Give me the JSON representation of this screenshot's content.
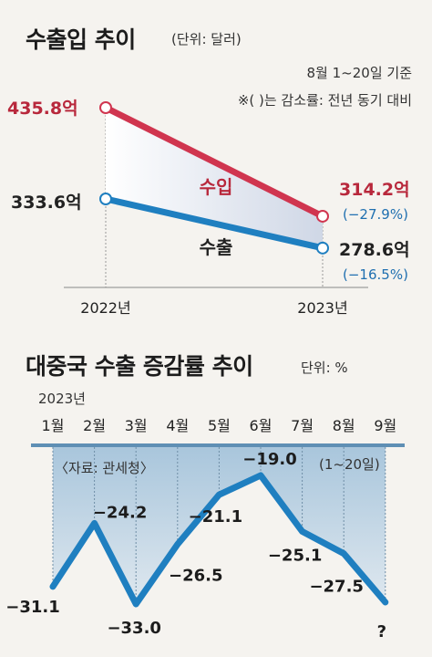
{
  "top": {
    "title": "수출입 추이",
    "unit": "(단위: 달러)",
    "note1": "8월 1~20일 기준",
    "note2": "※(  )는 감소률: 전년 동기 대비"
  },
  "bottom": {
    "title": "대중국 수출 증감률 추이",
    "unit": "단위: %",
    "year": "2023년",
    "source": "〈자료: 관세청〉",
    "period_note": "(1~20일)"
  },
  "colors": {
    "import": "#d0354f",
    "export": "#1f7fc0",
    "import_text": "#b8283c",
    "export_text": "#1f6fb0"
  },
  "chart_data": [
    {
      "type": "line",
      "categories": [
        "2022년",
        "2023년"
      ],
      "series": [
        {
          "name": "수입",
          "values": [
            435.8,
            314.2
          ],
          "labels": [
            "435.8억",
            "314.2억"
          ],
          "change": "(−27.9%)"
        },
        {
          "name": "수출",
          "values": [
            333.6,
            278.6
          ],
          "labels": [
            "333.6억",
            "278.6억"
          ],
          "change": "(−16.5%)"
        }
      ]
    },
    {
      "type": "area",
      "categories": [
        "1월",
        "2월",
        "3월",
        "4월",
        "5월",
        "6월",
        "7월",
        "8월",
        "9월"
      ],
      "values": [
        -31.1,
        -24.2,
        -33.0,
        -26.5,
        -21.1,
        -19.0,
        -25.1,
        -27.5,
        null
      ],
      "labels": [
        "−31.1",
        "−24.2",
        "−33.0",
        "−26.5",
        "−21.1",
        "−19.0",
        "−25.1",
        "−27.5",
        "?"
      ]
    }
  ]
}
